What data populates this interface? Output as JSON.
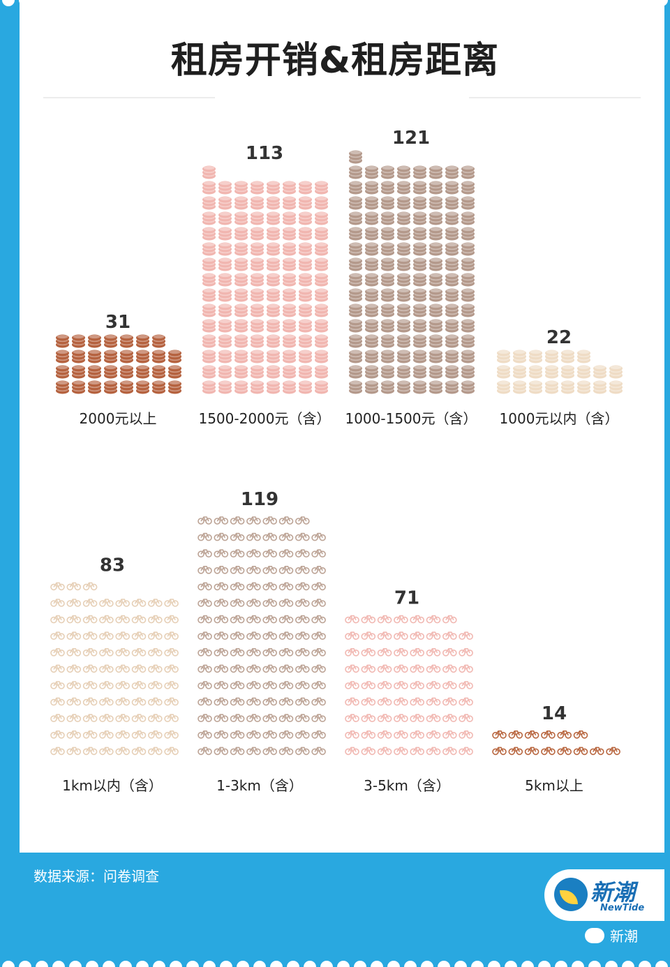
{
  "title": "租房开销&租房距离",
  "source": "数据来源：问卷调查",
  "brand": {
    "name_cn": "新潮",
    "name_en": "NewTide",
    "wechat": "新潮"
  },
  "colors": {
    "background": "#29a8e0",
    "card": "#ffffff",
    "cost_2000_plus": "#b5623f",
    "cost_1500_2000": "#f1b6b0",
    "cost_1000_1500": "#b4998b",
    "cost_under_1000": "#efdcc5",
    "dist_under_1km": "#e6cfb6",
    "dist_1_3km": "#bca395",
    "dist_3_5km": "#f1b8b2",
    "dist_5km_plus": "#b8663f"
  },
  "chart_data": [
    {
      "type": "bar",
      "title": "租房开销",
      "icon": "coin-stack-icon",
      "categories": [
        "2000元以上",
        "1500-2000元（含）",
        "1000-1500元（含）",
        "1000元以内（含）"
      ],
      "values": [
        31,
        113,
        121,
        22
      ],
      "colors": [
        "#b5623f",
        "#f1b6b0",
        "#b4998b",
        "#efdcc5"
      ]
    },
    {
      "type": "bar",
      "title": "租房距离",
      "icon": "bicycle-icon",
      "categories": [
        "1km以内（含）",
        "1-3km（含）",
        "3-5km（含）",
        "5km以上"
      ],
      "values": [
        83,
        119,
        71,
        14
      ],
      "colors": [
        "#e6cfb6",
        "#bca395",
        "#f1b8b2",
        "#b8663f"
      ]
    }
  ]
}
